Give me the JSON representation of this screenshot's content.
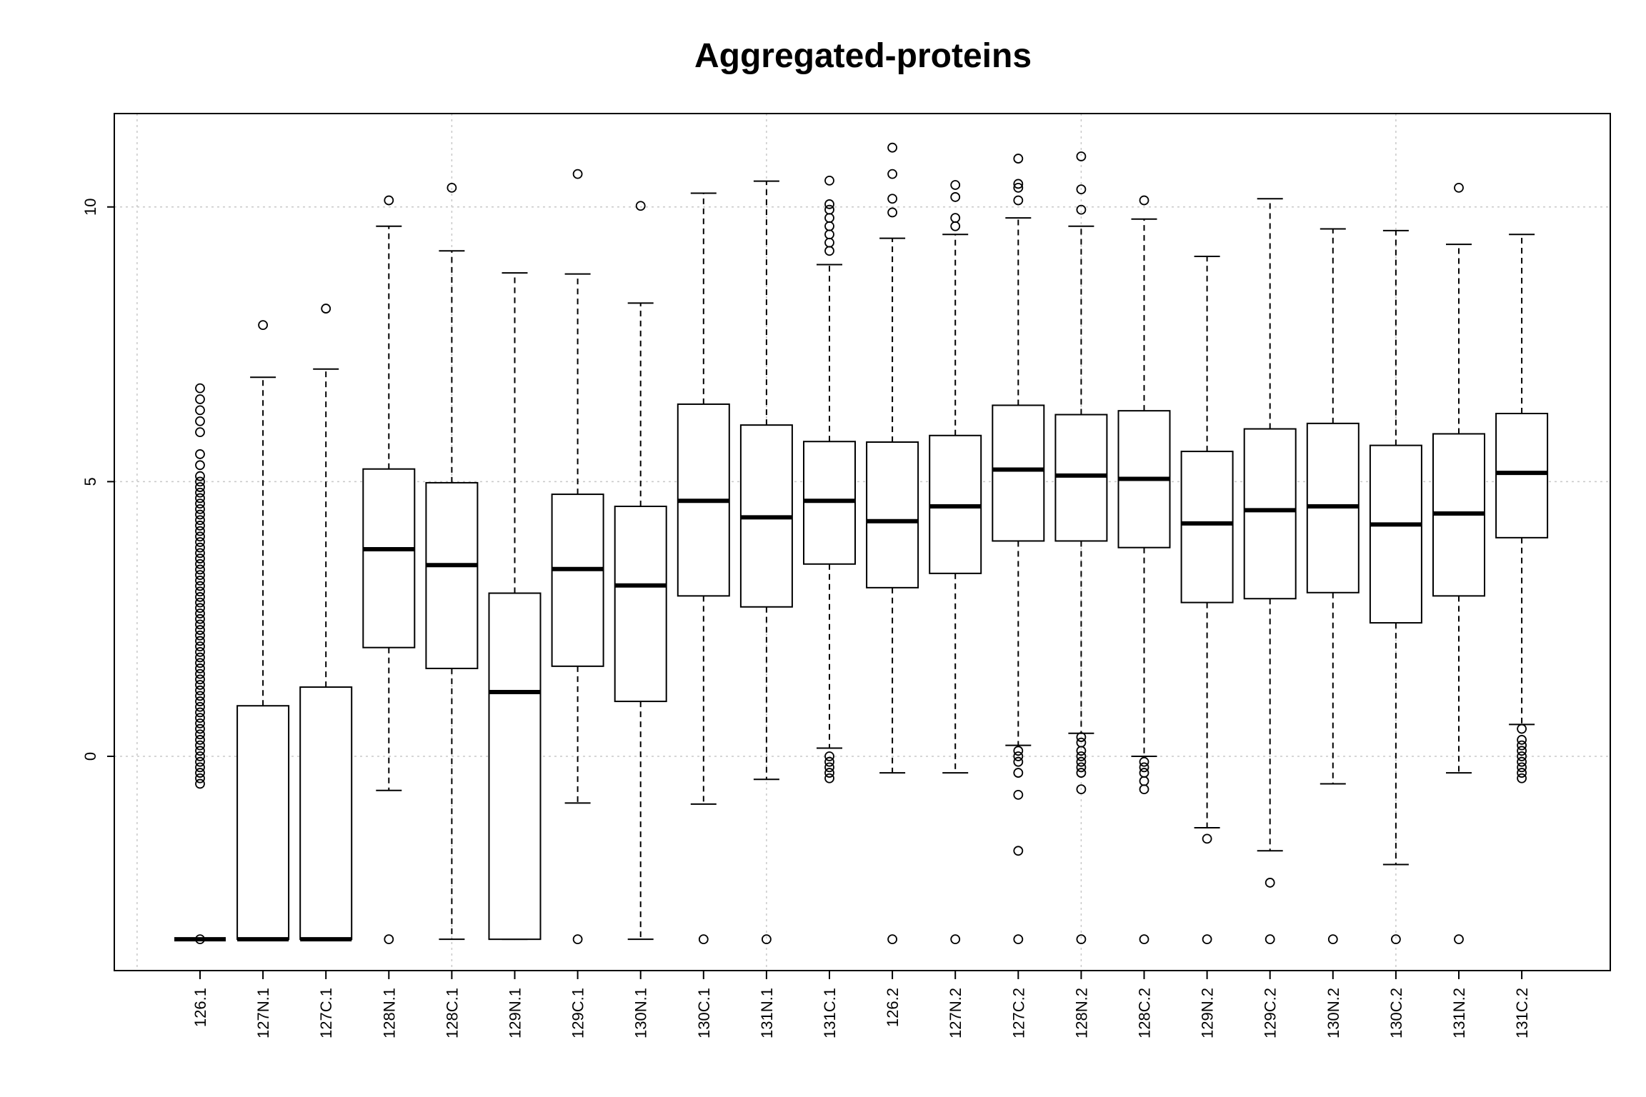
{
  "chart_data": {
    "type": "box",
    "title": "Aggregated-proteins",
    "xlabel": "",
    "ylabel": "",
    "ylim": [
      -3.9,
      11.7
    ],
    "yticks": [
      0,
      5,
      10
    ],
    "grid": true,
    "legend": "none",
    "categories": [
      "126.1",
      "127N.1",
      "127C.1",
      "128N.1",
      "128C.1",
      "129N.1",
      "129C.1",
      "130N.1",
      "130C.1",
      "131N.1",
      "131C.1",
      "126.2",
      "127N.2",
      "127C.2",
      "128N.2",
      "128C.2",
      "129N.2",
      "129C.2",
      "130N.2",
      "130C.2",
      "131N.2",
      "131C.2"
    ],
    "boxes": [
      {
        "q1": -3.33,
        "median": -3.33,
        "q3": -3.33,
        "whisker_low": -3.33,
        "whisker_high": -3.33,
        "outliers": [
          -3.33,
          -0.5,
          -0.4,
          -0.3,
          -0.2,
          -0.1,
          0,
          0.1,
          0.2,
          0.3,
          0.4,
          0.5,
          0.6,
          0.7,
          0.8,
          0.9,
          1.0,
          1.1,
          1.2,
          1.3,
          1.4,
          1.5,
          1.6,
          1.7,
          1.8,
          1.9,
          2.0,
          2.1,
          2.2,
          2.3,
          2.4,
          2.5,
          2.6,
          2.7,
          2.8,
          2.9,
          3.0,
          3.1,
          3.2,
          3.3,
          3.4,
          3.5,
          3.6,
          3.7,
          3.8,
          3.9,
          4.0,
          4.1,
          4.2,
          4.3,
          4.4,
          4.5,
          4.6,
          4.7,
          4.8,
          4.9,
          5.0,
          5.1,
          5.3,
          5.5,
          5.9,
          6.1,
          6.3,
          6.5,
          6.7
        ]
      },
      {
        "q1": -3.33,
        "median": -3.33,
        "q3": 0.92,
        "whisker_low": -3.33,
        "whisker_high": 6.9,
        "outliers": [
          7.85
        ]
      },
      {
        "q1": -3.33,
        "median": -3.33,
        "q3": 1.26,
        "whisker_low": -3.33,
        "whisker_high": 7.05,
        "outliers": [
          8.15
        ]
      },
      {
        "q1": 1.98,
        "median": 3.77,
        "q3": 5.23,
        "whisker_low": -0.62,
        "whisker_high": 9.65,
        "outliers": [
          10.12,
          -3.33
        ]
      },
      {
        "q1": 1.6,
        "median": 3.48,
        "q3": 4.98,
        "whisker_low": -3.33,
        "whisker_high": 9.2,
        "outliers": [
          10.35
        ]
      },
      {
        "q1": -3.33,
        "median": 1.17,
        "q3": 2.97,
        "whisker_low": -3.33,
        "whisker_high": 8.8,
        "outliers": []
      },
      {
        "q1": 1.64,
        "median": 3.41,
        "q3": 4.77,
        "whisker_low": -0.85,
        "whisker_high": 8.78,
        "outliers": [
          10.6,
          -3.33
        ]
      },
      {
        "q1": 1.0,
        "median": 3.11,
        "q3": 4.55,
        "whisker_low": -3.33,
        "whisker_high": 8.25,
        "outliers": [
          10.02
        ]
      },
      {
        "q1": 2.92,
        "median": 4.65,
        "q3": 6.41,
        "whisker_low": -0.87,
        "whisker_high": 10.25,
        "outliers": [
          -3.33
        ]
      },
      {
        "q1": 2.72,
        "median": 4.35,
        "q3": 6.03,
        "whisker_low": -0.42,
        "whisker_high": 10.47,
        "outliers": [
          -3.33
        ]
      },
      {
        "q1": 3.5,
        "median": 4.65,
        "q3": 5.73,
        "whisker_low": 0.15,
        "whisker_high": 8.95,
        "outliers": [
          9.2,
          9.35,
          9.5,
          9.65,
          9.8,
          9.95,
          10.05,
          10.48,
          0.0,
          -0.1,
          -0.2,
          -0.3,
          -0.4
        ]
      },
      {
        "q1": 3.07,
        "median": 4.28,
        "q3": 5.72,
        "whisker_low": -0.3,
        "whisker_high": 9.43,
        "outliers": [
          9.9,
          10.15,
          10.6,
          11.08,
          -3.33
        ]
      },
      {
        "q1": 3.33,
        "median": 4.55,
        "q3": 5.84,
        "whisker_low": -0.3,
        "whisker_high": 9.5,
        "outliers": [
          9.65,
          9.8,
          10.18,
          10.4,
          -3.33
        ]
      },
      {
        "q1": 3.92,
        "median": 5.22,
        "q3": 6.39,
        "whisker_low": 0.2,
        "whisker_high": 9.8,
        "outliers": [
          10.12,
          10.35,
          10.42,
          10.88,
          0.1,
          0.0,
          -0.1,
          -0.3,
          -0.7,
          -1.72,
          -3.33
        ]
      },
      {
        "q1": 3.92,
        "median": 5.11,
        "q3": 6.22,
        "whisker_low": 0.42,
        "whisker_high": 9.65,
        "outliers": [
          9.95,
          10.32,
          10.92,
          0.35,
          0.25,
          0.1,
          0.0,
          -0.1,
          -0.2,
          -0.3,
          -0.6,
          -3.33
        ]
      },
      {
        "q1": 3.8,
        "median": 5.05,
        "q3": 6.29,
        "whisker_low": 0.0,
        "whisker_high": 9.78,
        "outliers": [
          10.12,
          -0.1,
          -0.2,
          -0.3,
          -0.45,
          -0.6,
          -3.33
        ]
      },
      {
        "q1": 2.8,
        "median": 4.24,
        "q3": 5.55,
        "whisker_low": -1.3,
        "whisker_high": 9.1,
        "outliers": [
          -1.5,
          -3.33
        ]
      },
      {
        "q1": 2.87,
        "median": 4.48,
        "q3": 5.96,
        "whisker_low": -1.72,
        "whisker_high": 10.15,
        "outliers": [
          -2.3,
          -3.33
        ]
      },
      {
        "q1": 2.98,
        "median": 4.55,
        "q3": 6.06,
        "whisker_low": -0.5,
        "whisker_high": 9.6,
        "outliers": [
          -3.33
        ]
      },
      {
        "q1": 2.43,
        "median": 4.22,
        "q3": 5.66,
        "whisker_low": -1.97,
        "whisker_high": 9.57,
        "outliers": [
          -3.33
        ]
      },
      {
        "q1": 2.92,
        "median": 4.42,
        "q3": 5.87,
        "whisker_low": -0.3,
        "whisker_high": 9.32,
        "outliers": [
          10.35,
          -3.33
        ]
      },
      {
        "q1": 3.98,
        "median": 5.16,
        "q3": 6.24,
        "whisker_low": 0.58,
        "whisker_high": 9.5,
        "outliers": [
          0.5,
          0.3,
          0.2,
          0.1,
          0.0,
          -0.1,
          -0.2,
          -0.3,
          -0.4
        ]
      }
    ]
  }
}
